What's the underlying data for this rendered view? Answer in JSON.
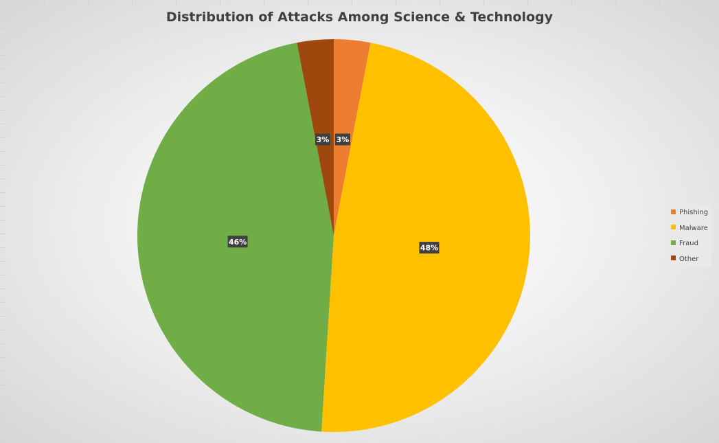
{
  "chart_data": {
    "type": "pie",
    "title": "Distribution of Attacks Among Science & Technology",
    "categories": [
      "Phishing",
      "Malware",
      "Fraud",
      "Other"
    ],
    "values": [
      3,
      48,
      46,
      3
    ],
    "colors": [
      "#ED7D31",
      "#FFC000",
      "#70AD47",
      "#9E480E"
    ],
    "data_labels": [
      "3%",
      "48%",
      "46%",
      "3%"
    ],
    "legend_position": "right"
  }
}
